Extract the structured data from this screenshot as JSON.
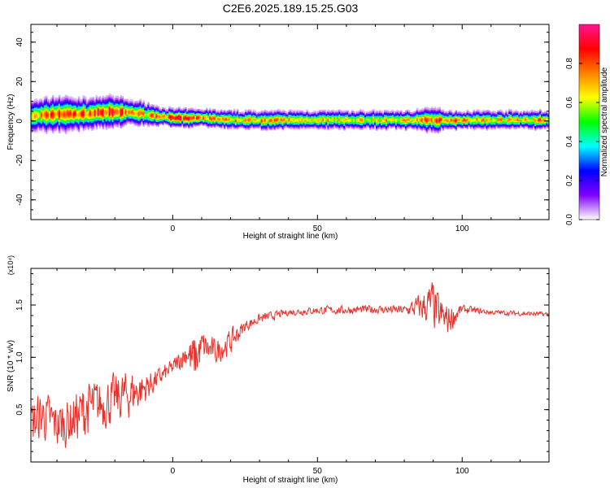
{
  "title": "C2E6.2025.189.15.25.G03",
  "chart_data": [
    {
      "type": "heatmap",
      "xlabel": "Height of straight line (km)",
      "ylabel": "Frequency (Hz)",
      "xlim": [
        -49,
        130
      ],
      "ylim": [
        -50,
        49
      ],
      "x_ticks": [
        "0",
        "50",
        "100"
      ],
      "x_tick_values": [
        0,
        50,
        100
      ],
      "y_ticks": [
        "40",
        "20",
        "0",
        "-20",
        "-40"
      ],
      "y_tick_values": [
        40,
        20,
        0,
        -20,
        -40
      ],
      "colorbar": {
        "label": "Normalized spectral amplitude",
        "range": [
          0,
          1
        ],
        "ticks": [
          "0.0",
          "0.2",
          "0.4",
          "0.6",
          "0.8"
        ],
        "tick_values": [
          0.0,
          0.2,
          0.4,
          0.6,
          0.8
        ],
        "colors": [
          "#ffffff",
          "#8000ff",
          "#0000ff",
          "#00ffff",
          "#00ff00",
          "#ffff00",
          "#ff8000",
          "#ff0000",
          "#ff1493"
        ]
      },
      "ridge": {
        "x": [
          -49,
          -40,
          -30,
          -25,
          -20,
          -15,
          -10,
          -5,
          0,
          5,
          10,
          20,
          30,
          40,
          50,
          60,
          70,
          80,
          90,
          95,
          100,
          110,
          120,
          130
        ],
        "center_hz": [
          3,
          4,
          4,
          5,
          5,
          5,
          4,
          3,
          2,
          2,
          2,
          1,
          1,
          1,
          1,
          1,
          1,
          1,
          1,
          1,
          1,
          1,
          1,
          1
        ],
        "halfwidth_hz": [
          5,
          6,
          5,
          5,
          5,
          4,
          4,
          3,
          3,
          3,
          3,
          3,
          3,
          3,
          3,
          3,
          3,
          3,
          4,
          3,
          3,
          3,
          3,
          3
        ],
        "peak_amplitude": [
          0.7,
          0.85,
          0.85,
          0.95,
          0.9,
          0.8,
          0.75,
          0.8,
          0.9,
          0.85,
          0.85,
          0.75,
          0.8,
          0.75,
          0.75,
          0.7,
          0.7,
          0.75,
          0.8,
          0.85,
          0.8,
          0.75,
          0.75,
          0.8
        ]
      }
    },
    {
      "type": "line",
      "xlabel": "Height of straight line (km)",
      "ylabel": "SNR (10 * v/v)",
      "yscale_label": "(x10⁴)",
      "xlim": [
        -49,
        130
      ],
      "ylim": [
        0,
        1.85
      ],
      "x_ticks": [
        "0",
        "50",
        "100"
      ],
      "x_tick_values": [
        0,
        50,
        100
      ],
      "y_ticks": [
        "1.5",
        "1.0",
        "0.5"
      ],
      "y_tick_values": [
        1.5,
        1.0,
        0.5
      ],
      "color": "#e8312a",
      "series": [
        {
          "x": [
            -49,
            -45,
            -40,
            -35,
            -30,
            -25,
            -20,
            -15,
            -10,
            -5,
            0,
            5,
            7,
            10,
            15,
            20,
            25,
            30,
            40,
            50,
            60,
            70,
            80,
            85,
            90,
            92,
            95,
            100,
            110,
            120,
            130
          ],
          "values": [
            0.35,
            0.45,
            0.35,
            0.4,
            0.5,
            0.55,
            0.6,
            0.65,
            0.7,
            0.8,
            0.9,
            1.05,
            0.95,
            1.1,
            1.05,
            1.15,
            1.3,
            1.37,
            1.43,
            1.45,
            1.45,
            1.46,
            1.45,
            1.48,
            1.5,
            1.4,
            1.35,
            1.46,
            1.43,
            1.42,
            1.41
          ],
          "noise": [
            0.3,
            0.3,
            0.3,
            0.3,
            0.35,
            0.3,
            0.3,
            0.3,
            0.2,
            0.12,
            0.1,
            0.15,
            0.35,
            0.2,
            0.15,
            0.15,
            0.07,
            0.06,
            0.04,
            0.05,
            0.05,
            0.05,
            0.06,
            0.15,
            0.3,
            0.25,
            0.2,
            0.05,
            0.03,
            0.03,
            0.03
          ]
        }
      ]
    }
  ]
}
